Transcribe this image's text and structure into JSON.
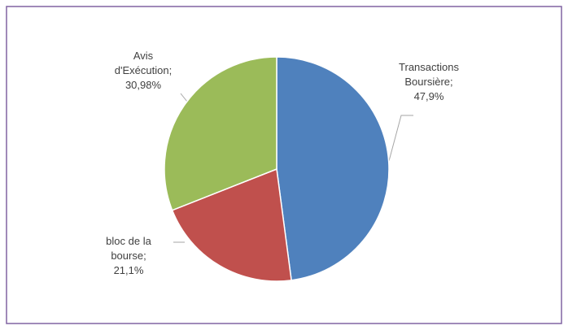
{
  "chart_data": {
    "type": "pie",
    "categories": [
      "Transactions Boursière",
      "bloc de la bourse",
      "Avis d'Exécution"
    ],
    "values": [
      47.9,
      21.1,
      30.98
    ],
    "value_labels": [
      "47,9%",
      "21,1%",
      "30,98%"
    ],
    "separator": ";",
    "colors": [
      "#4f81bd",
      "#c0504d",
      "#9bbb59"
    ]
  }
}
